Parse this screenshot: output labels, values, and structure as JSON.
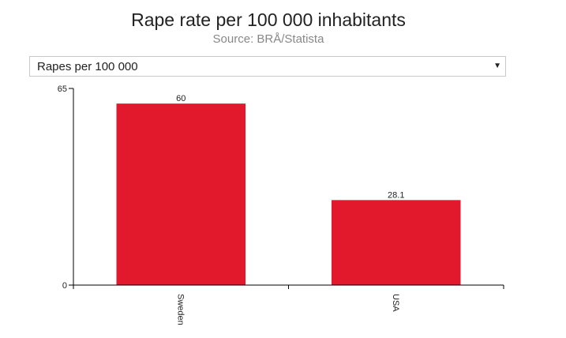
{
  "header": {
    "title": "Rape rate per 100 000 inhabitants",
    "subtitle": "Source: BRÅ/Statista"
  },
  "selector": {
    "selected": "Rapes per 100 000",
    "arrow_icon": "triangle-down-icon"
  },
  "colors": {
    "bar": "#e2192c",
    "axis": "#000000"
  },
  "chart_data": {
    "type": "bar",
    "categories": [
      "Sweden",
      "USA"
    ],
    "values": [
      60,
      28.1
    ],
    "data_labels": [
      "60",
      "28.1"
    ],
    "ylim": [
      0,
      65
    ],
    "y_ticks": [
      "0",
      "65"
    ],
    "title": "Rape rate per 100 000 inhabitants",
    "xlabel": "",
    "ylabel": "",
    "grid": false,
    "legend": "none"
  }
}
